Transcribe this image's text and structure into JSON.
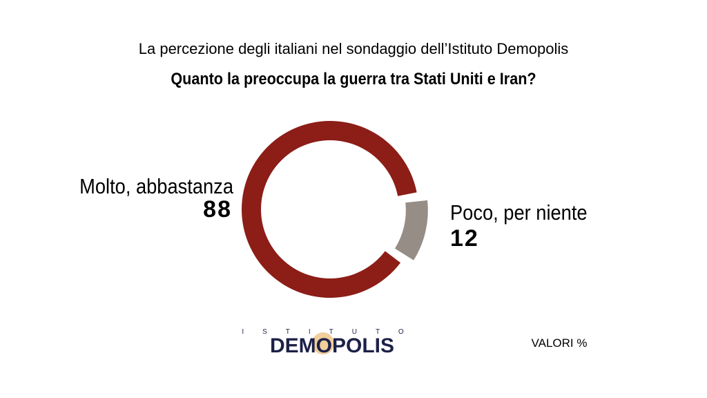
{
  "chart_data": {
    "type": "donut",
    "subtitle": "La percezione degli italiani nel sondaggio dell’Istituto Demopolis",
    "title": "Quanto la preoccupa la guerra tra Stati Uniti e Iran?",
    "categories": [
      "Molto, abbastanza",
      "Poco, per niente"
    ],
    "values": [
      88,
      12
    ],
    "colors": [
      "#8c1d17",
      "#968e86"
    ],
    "logo": {
      "top": "ISTITUTO",
      "name": "DEMOPOLIS"
    },
    "note": "VALORI %"
  }
}
